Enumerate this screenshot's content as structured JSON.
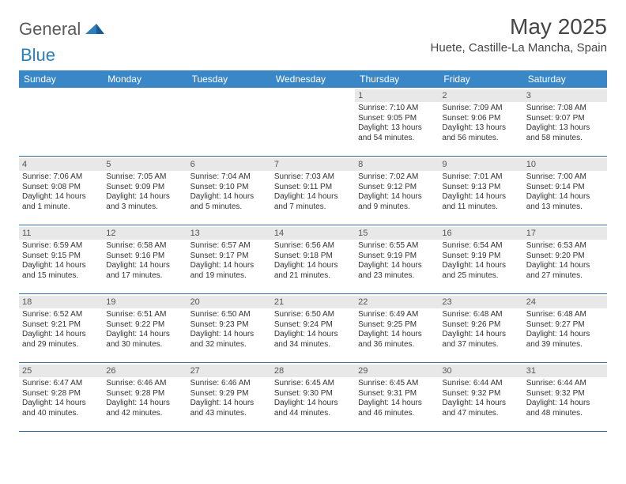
{
  "brand": {
    "part1": "General",
    "part2": "Blue"
  },
  "title": "May 2025",
  "location": "Huete, Castille-La Mancha, Spain",
  "colors": {
    "header_bg": "#3a87c7",
    "header_text": "#ffffff",
    "daynum_bg": "#e8e8e8",
    "text": "#333333",
    "rule": "#2f6fa3",
    "brand_gray": "#5a5a5a",
    "brand_blue": "#2a7fbf"
  },
  "day_names": [
    "Sunday",
    "Monday",
    "Tuesday",
    "Wednesday",
    "Thursday",
    "Friday",
    "Saturday"
  ],
  "first_weekday_index": 4,
  "days": [
    {
      "n": 1,
      "sunrise": "7:10 AM",
      "sunset": "9:05 PM",
      "daylight": "13 hours and 54 minutes."
    },
    {
      "n": 2,
      "sunrise": "7:09 AM",
      "sunset": "9:06 PM",
      "daylight": "13 hours and 56 minutes."
    },
    {
      "n": 3,
      "sunrise": "7:08 AM",
      "sunset": "9:07 PM",
      "daylight": "13 hours and 58 minutes."
    },
    {
      "n": 4,
      "sunrise": "7:06 AM",
      "sunset": "9:08 PM",
      "daylight": "14 hours and 1 minute."
    },
    {
      "n": 5,
      "sunrise": "7:05 AM",
      "sunset": "9:09 PM",
      "daylight": "14 hours and 3 minutes."
    },
    {
      "n": 6,
      "sunrise": "7:04 AM",
      "sunset": "9:10 PM",
      "daylight": "14 hours and 5 minutes."
    },
    {
      "n": 7,
      "sunrise": "7:03 AM",
      "sunset": "9:11 PM",
      "daylight": "14 hours and 7 minutes."
    },
    {
      "n": 8,
      "sunrise": "7:02 AM",
      "sunset": "9:12 PM",
      "daylight": "14 hours and 9 minutes."
    },
    {
      "n": 9,
      "sunrise": "7:01 AM",
      "sunset": "9:13 PM",
      "daylight": "14 hours and 11 minutes."
    },
    {
      "n": 10,
      "sunrise": "7:00 AM",
      "sunset": "9:14 PM",
      "daylight": "14 hours and 13 minutes."
    },
    {
      "n": 11,
      "sunrise": "6:59 AM",
      "sunset": "9:15 PM",
      "daylight": "14 hours and 15 minutes."
    },
    {
      "n": 12,
      "sunrise": "6:58 AM",
      "sunset": "9:16 PM",
      "daylight": "14 hours and 17 minutes."
    },
    {
      "n": 13,
      "sunrise": "6:57 AM",
      "sunset": "9:17 PM",
      "daylight": "14 hours and 19 minutes."
    },
    {
      "n": 14,
      "sunrise": "6:56 AM",
      "sunset": "9:18 PM",
      "daylight": "14 hours and 21 minutes."
    },
    {
      "n": 15,
      "sunrise": "6:55 AM",
      "sunset": "9:19 PM",
      "daylight": "14 hours and 23 minutes."
    },
    {
      "n": 16,
      "sunrise": "6:54 AM",
      "sunset": "9:19 PM",
      "daylight": "14 hours and 25 minutes."
    },
    {
      "n": 17,
      "sunrise": "6:53 AM",
      "sunset": "9:20 PM",
      "daylight": "14 hours and 27 minutes."
    },
    {
      "n": 18,
      "sunrise": "6:52 AM",
      "sunset": "9:21 PM",
      "daylight": "14 hours and 29 minutes."
    },
    {
      "n": 19,
      "sunrise": "6:51 AM",
      "sunset": "9:22 PM",
      "daylight": "14 hours and 30 minutes."
    },
    {
      "n": 20,
      "sunrise": "6:50 AM",
      "sunset": "9:23 PM",
      "daylight": "14 hours and 32 minutes."
    },
    {
      "n": 21,
      "sunrise": "6:50 AM",
      "sunset": "9:24 PM",
      "daylight": "14 hours and 34 minutes."
    },
    {
      "n": 22,
      "sunrise": "6:49 AM",
      "sunset": "9:25 PM",
      "daylight": "14 hours and 36 minutes."
    },
    {
      "n": 23,
      "sunrise": "6:48 AM",
      "sunset": "9:26 PM",
      "daylight": "14 hours and 37 minutes."
    },
    {
      "n": 24,
      "sunrise": "6:48 AM",
      "sunset": "9:27 PM",
      "daylight": "14 hours and 39 minutes."
    },
    {
      "n": 25,
      "sunrise": "6:47 AM",
      "sunset": "9:28 PM",
      "daylight": "14 hours and 40 minutes."
    },
    {
      "n": 26,
      "sunrise": "6:46 AM",
      "sunset": "9:28 PM",
      "daylight": "14 hours and 42 minutes."
    },
    {
      "n": 27,
      "sunrise": "6:46 AM",
      "sunset": "9:29 PM",
      "daylight": "14 hours and 43 minutes."
    },
    {
      "n": 28,
      "sunrise": "6:45 AM",
      "sunset": "9:30 PM",
      "daylight": "14 hours and 44 minutes."
    },
    {
      "n": 29,
      "sunrise": "6:45 AM",
      "sunset": "9:31 PM",
      "daylight": "14 hours and 46 minutes."
    },
    {
      "n": 30,
      "sunrise": "6:44 AM",
      "sunset": "9:32 PM",
      "daylight": "14 hours and 47 minutes."
    },
    {
      "n": 31,
      "sunrise": "6:44 AM",
      "sunset": "9:32 PM",
      "daylight": "14 hours and 48 minutes."
    }
  ],
  "labels": {
    "sunrise": "Sunrise:",
    "sunset": "Sunset:",
    "daylight": "Daylight:"
  }
}
